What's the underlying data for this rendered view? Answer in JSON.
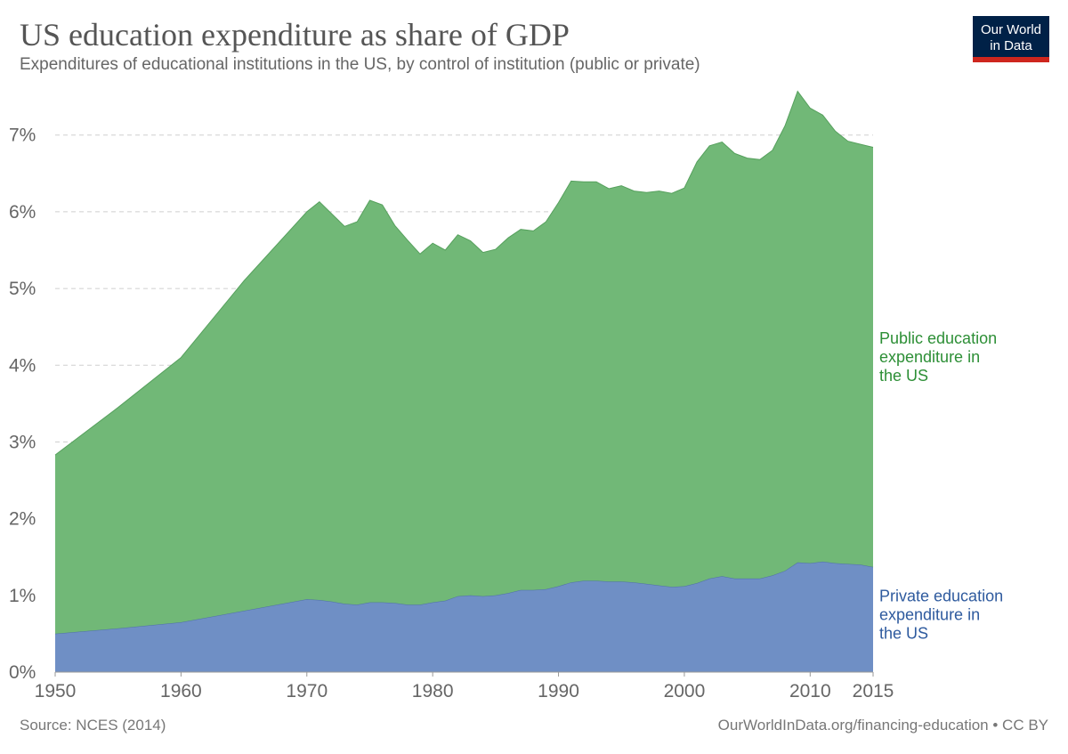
{
  "header": {
    "title": "US education expenditure as share of GDP",
    "subtitle": "Expenditures of educational institutions in the US, by control of institution (public or private)"
  },
  "logo": {
    "line1": "Our World",
    "line2": "in Data",
    "bg_color": "#002147",
    "accent_color": "#ce261e"
  },
  "footer": {
    "source": "Source: NCES (2014)",
    "credit": "OurWorldInData.org/financing-education • CC BY"
  },
  "chart_data": {
    "type": "area",
    "stacked": true,
    "xlim": [
      1950,
      2015
    ],
    "ylim": [
      0,
      7.6
    ],
    "x_ticks": [
      1950,
      1960,
      1970,
      1980,
      1990,
      2000,
      2010,
      2015
    ],
    "y_ticks": [
      {
        "value": 0,
        "label": "0%"
      },
      {
        "value": 1,
        "label": "1%"
      },
      {
        "value": 2,
        "label": "2%"
      },
      {
        "value": 3,
        "label": "3%"
      },
      {
        "value": 4,
        "label": "4%"
      },
      {
        "value": 5,
        "label": "5%"
      },
      {
        "value": 6,
        "label": "6%"
      },
      {
        "value": 7,
        "label": "7%"
      }
    ],
    "grid": "horizontal-dashed",
    "legend": "inline-right",
    "series": [
      {
        "name": "Private education expenditure in the US",
        "label_lines": [
          "Private education",
          "expenditure in",
          "the US"
        ],
        "color": "#6f8fc5",
        "stroke": "#4f6fa8",
        "label_color": "#2e5a9e",
        "points": [
          [
            1950,
            0.5
          ],
          [
            1955,
            0.57
          ],
          [
            1960,
            0.65
          ],
          [
            1965,
            0.8
          ],
          [
            1970,
            0.95
          ],
          [
            1971,
            0.94
          ],
          [
            1972,
            0.92
          ],
          [
            1973,
            0.89
          ],
          [
            1974,
            0.88
          ],
          [
            1975,
            0.91
          ],
          [
            1976,
            0.91
          ],
          [
            1977,
            0.9
          ],
          [
            1978,
            0.88
          ],
          [
            1979,
            0.88
          ],
          [
            1980,
            0.91
          ],
          [
            1981,
            0.93
          ],
          [
            1982,
            0.99
          ],
          [
            1983,
            1.0
          ],
          [
            1984,
            0.99
          ],
          [
            1985,
            1.0
          ],
          [
            1986,
            1.03
          ],
          [
            1987,
            1.07
          ],
          [
            1988,
            1.07
          ],
          [
            1989,
            1.08
          ],
          [
            1990,
            1.12
          ],
          [
            1991,
            1.17
          ],
          [
            1992,
            1.19
          ],
          [
            1993,
            1.19
          ],
          [
            1994,
            1.18
          ],
          [
            1995,
            1.18
          ],
          [
            1996,
            1.17
          ],
          [
            1997,
            1.15
          ],
          [
            1998,
            1.13
          ],
          [
            1999,
            1.11
          ],
          [
            2000,
            1.12
          ],
          [
            2001,
            1.16
          ],
          [
            2002,
            1.22
          ],
          [
            2003,
            1.25
          ],
          [
            2004,
            1.22
          ],
          [
            2005,
            1.22
          ],
          [
            2006,
            1.22
          ],
          [
            2007,
            1.26
          ],
          [
            2008,
            1.32
          ],
          [
            2009,
            1.43
          ],
          [
            2010,
            1.42
          ],
          [
            2011,
            1.44
          ],
          [
            2012,
            1.42
          ],
          [
            2013,
            1.41
          ],
          [
            2014,
            1.4
          ],
          [
            2015,
            1.37
          ]
        ]
      },
      {
        "name": "Public education expenditure in the US",
        "label_lines": [
          "Public education",
          "expenditure in",
          "the US"
        ],
        "color": "#71b877",
        "stroke": "#56a05d",
        "label_color": "#2d8f36",
        "points": [
          [
            1950,
            2.33
          ],
          [
            1955,
            2.88
          ],
          [
            1960,
            3.45
          ],
          [
            1965,
            4.3
          ],
          [
            1970,
            5.05
          ],
          [
            1971,
            5.19
          ],
          [
            1972,
            5.05
          ],
          [
            1973,
            4.92
          ],
          [
            1974,
            4.99
          ],
          [
            1975,
            5.24
          ],
          [
            1976,
            5.18
          ],
          [
            1977,
            4.92
          ],
          [
            1978,
            4.75
          ],
          [
            1979,
            4.57
          ],
          [
            1980,
            4.68
          ],
          [
            1981,
            4.57
          ],
          [
            1982,
            4.71
          ],
          [
            1983,
            4.62
          ],
          [
            1984,
            4.48
          ],
          [
            1985,
            4.51
          ],
          [
            1986,
            4.63
          ],
          [
            1987,
            4.7
          ],
          [
            1988,
            4.68
          ],
          [
            1989,
            4.79
          ],
          [
            1990,
            5.0
          ],
          [
            1991,
            5.23
          ],
          [
            1992,
            5.2
          ],
          [
            1993,
            5.2
          ],
          [
            1994,
            5.12
          ],
          [
            1995,
            5.16
          ],
          [
            1996,
            5.1
          ],
          [
            1997,
            5.1
          ],
          [
            1998,
            5.14
          ],
          [
            1999,
            5.13
          ],
          [
            2000,
            5.19
          ],
          [
            2001,
            5.49
          ],
          [
            2002,
            5.64
          ],
          [
            2003,
            5.66
          ],
          [
            2004,
            5.54
          ],
          [
            2005,
            5.48
          ],
          [
            2006,
            5.46
          ],
          [
            2007,
            5.54
          ],
          [
            2008,
            5.8
          ],
          [
            2009,
            6.14
          ],
          [
            2010,
            5.93
          ],
          [
            2011,
            5.82
          ],
          [
            2012,
            5.63
          ],
          [
            2013,
            5.51
          ],
          [
            2014,
            5.48
          ],
          [
            2015,
            5.47
          ]
        ]
      }
    ]
  }
}
